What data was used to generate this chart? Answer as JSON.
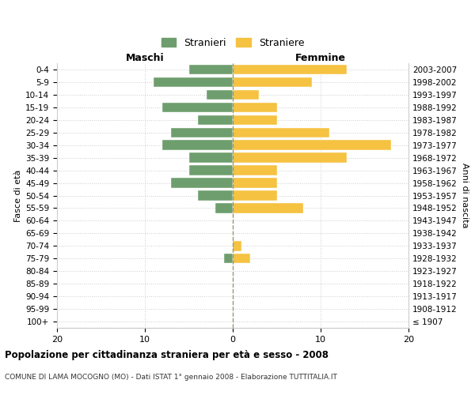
{
  "age_groups": [
    "0-4",
    "5-9",
    "10-14",
    "15-19",
    "20-24",
    "25-29",
    "30-34",
    "35-39",
    "40-44",
    "45-49",
    "50-54",
    "55-59",
    "60-64",
    "65-69",
    "70-74",
    "75-79",
    "80-84",
    "85-89",
    "90-94",
    "95-99",
    "100+"
  ],
  "birth_years": [
    "2003-2007",
    "1998-2002",
    "1993-1997",
    "1988-1992",
    "1983-1987",
    "1978-1982",
    "1973-1977",
    "1968-1972",
    "1963-1967",
    "1958-1962",
    "1953-1957",
    "1948-1952",
    "1943-1947",
    "1938-1942",
    "1933-1937",
    "1928-1932",
    "1923-1927",
    "1918-1922",
    "1913-1917",
    "1908-1912",
    "≤ 1907"
  ],
  "maschi": [
    5,
    9,
    3,
    8,
    4,
    7,
    8,
    5,
    5,
    7,
    4,
    2,
    0,
    0,
    0,
    1,
    0,
    0,
    0,
    0,
    0
  ],
  "femmine": [
    13,
    9,
    3,
    5,
    5,
    11,
    18,
    13,
    5,
    5,
    5,
    8,
    0,
    0,
    1,
    2,
    0,
    0,
    0,
    0,
    0
  ],
  "color_maschi": "#6e9e6e",
  "color_femmine": "#f5c242",
  "title": "Popolazione per cittadinanza straniera per età e sesso - 2008",
  "subtitle": "COMUNE DI LAMA MOCOGNO (MO) - Dati ISTAT 1° gennaio 2008 - Elaborazione TUTTITALIA.IT",
  "xlabel_left": "Maschi",
  "xlabel_right": "Femmine",
  "ylabel_left": "Fasce di età",
  "ylabel_right": "Anni di nascita",
  "xlim": 20,
  "legend_labels": [
    "Stranieri",
    "Straniere"
  ],
  "background_color": "#ffffff",
  "grid_color": "#cccccc"
}
